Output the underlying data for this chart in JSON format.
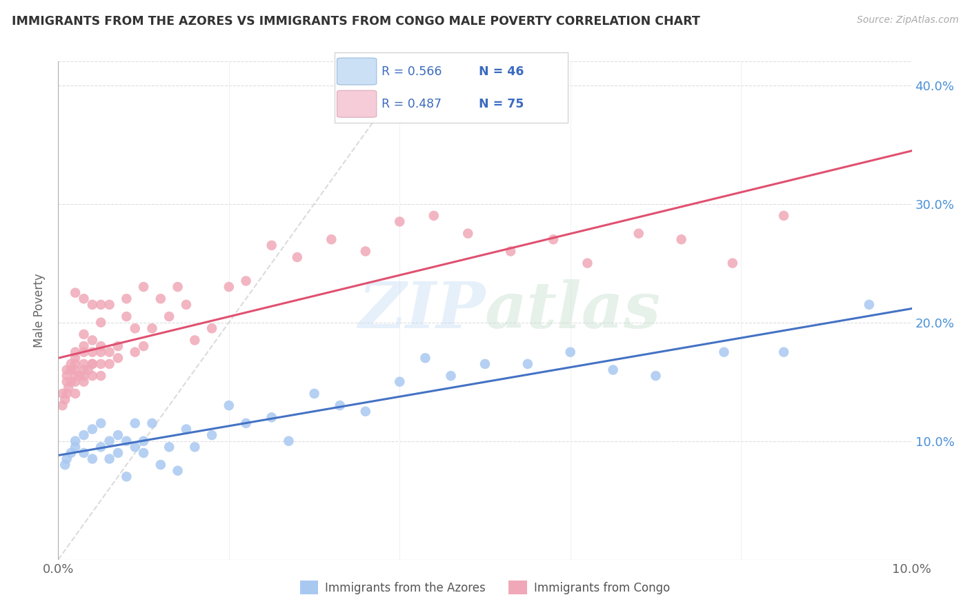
{
  "title": "IMMIGRANTS FROM THE AZORES VS IMMIGRANTS FROM CONGO MALE POVERTY CORRELATION CHART",
  "source": "Source: ZipAtlas.com",
  "ylabel": "Male Poverty",
  "xlim": [
    0.0,
    0.1
  ],
  "ylim": [
    0.0,
    0.42
  ],
  "azores_color": "#a8c8f0",
  "congo_color": "#f0a8b8",
  "azores_line_color": "#4472c4",
  "congo_line_color": "#e05070",
  "R_azores": 0.566,
  "N_azores": 46,
  "R_congo": 0.487,
  "N_congo": 75,
  "watermark": "ZIPatlas",
  "background_color": "#ffffff",
  "azores_x": [
    0.0008,
    0.001,
    0.0015,
    0.002,
    0.002,
    0.003,
    0.003,
    0.004,
    0.004,
    0.005,
    0.005,
    0.006,
    0.006,
    0.007,
    0.007,
    0.008,
    0.008,
    0.009,
    0.009,
    0.01,
    0.01,
    0.011,
    0.012,
    0.013,
    0.014,
    0.015,
    0.016,
    0.018,
    0.02,
    0.022,
    0.025,
    0.027,
    0.03,
    0.033,
    0.036,
    0.04,
    0.043,
    0.046,
    0.05,
    0.055,
    0.06,
    0.065,
    0.07,
    0.078,
    0.085,
    0.095
  ],
  "azores_y": [
    0.08,
    0.085,
    0.09,
    0.095,
    0.1,
    0.09,
    0.105,
    0.085,
    0.11,
    0.095,
    0.115,
    0.1,
    0.085,
    0.105,
    0.09,
    0.1,
    0.07,
    0.095,
    0.115,
    0.09,
    0.1,
    0.115,
    0.08,
    0.095,
    0.075,
    0.11,
    0.095,
    0.105,
    0.13,
    0.115,
    0.12,
    0.1,
    0.14,
    0.13,
    0.125,
    0.15,
    0.17,
    0.155,
    0.165,
    0.165,
    0.175,
    0.16,
    0.155,
    0.175,
    0.175,
    0.215
  ],
  "congo_x": [
    0.0005,
    0.0005,
    0.0008,
    0.001,
    0.001,
    0.001,
    0.001,
    0.0012,
    0.0015,
    0.0015,
    0.0015,
    0.002,
    0.002,
    0.002,
    0.002,
    0.002,
    0.002,
    0.002,
    0.002,
    0.0025,
    0.003,
    0.003,
    0.003,
    0.003,
    0.003,
    0.003,
    0.003,
    0.003,
    0.0035,
    0.004,
    0.004,
    0.004,
    0.004,
    0.004,
    0.004,
    0.005,
    0.005,
    0.005,
    0.005,
    0.005,
    0.005,
    0.006,
    0.006,
    0.006,
    0.007,
    0.007,
    0.008,
    0.008,
    0.009,
    0.009,
    0.01,
    0.01,
    0.011,
    0.012,
    0.013,
    0.014,
    0.015,
    0.016,
    0.018,
    0.02,
    0.022,
    0.025,
    0.028,
    0.032,
    0.036,
    0.04,
    0.044,
    0.048,
    0.053,
    0.058,
    0.062,
    0.068,
    0.073,
    0.079,
    0.085
  ],
  "congo_y": [
    0.13,
    0.14,
    0.135,
    0.14,
    0.15,
    0.155,
    0.16,
    0.145,
    0.15,
    0.16,
    0.165,
    0.14,
    0.15,
    0.155,
    0.16,
    0.165,
    0.17,
    0.175,
    0.225,
    0.155,
    0.15,
    0.155,
    0.16,
    0.165,
    0.175,
    0.18,
    0.19,
    0.22,
    0.16,
    0.155,
    0.165,
    0.175,
    0.185,
    0.215,
    0.165,
    0.155,
    0.165,
    0.175,
    0.18,
    0.2,
    0.215,
    0.165,
    0.175,
    0.215,
    0.17,
    0.18,
    0.205,
    0.22,
    0.175,
    0.195,
    0.18,
    0.23,
    0.195,
    0.22,
    0.205,
    0.23,
    0.215,
    0.185,
    0.195,
    0.23,
    0.235,
    0.265,
    0.255,
    0.27,
    0.26,
    0.285,
    0.29,
    0.275,
    0.26,
    0.27,
    0.25,
    0.275,
    0.27,
    0.25,
    0.29
  ]
}
